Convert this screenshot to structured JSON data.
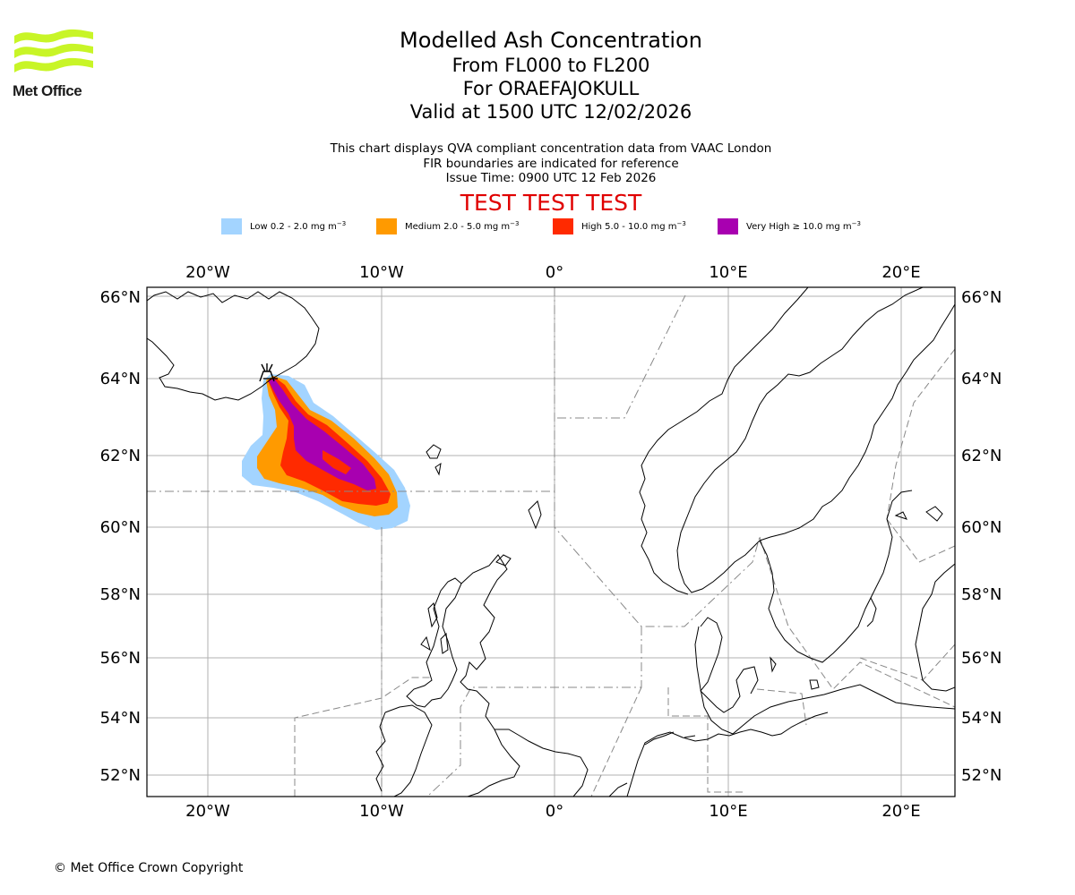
{
  "logo": {
    "text": "Met Office",
    "color": "#c8f527"
  },
  "title": {
    "line1": "Modelled Ash Concentration",
    "line2": "From FL000 to FL200",
    "line3": "For ORAEFAJOKULL",
    "line4": "Valid at 1500 UTC 12/02/2026"
  },
  "subtitle": {
    "line1": "This chart displays QVA compliant concentration data from VAAC London",
    "line2": "FIR boundaries are indicated for reference",
    "line3": "Issue Time: 0900 UTC 12 Feb 2026"
  },
  "banner": "TEST TEST TEST",
  "legend": [
    {
      "label": "Low 0.2 - 2.0 mg m",
      "unit_exp": "−3",
      "color": "#a3d4ff"
    },
    {
      "label": "Medium 2.0 - 5.0 mg m",
      "unit_exp": "−3",
      "color": "#ff9a00"
    },
    {
      "label": "High 5.0 - 10.0 mg m",
      "unit_exp": "−3",
      "color": "#ff2a00"
    },
    {
      "label": "Very High  ≥  10.0 mg m",
      "unit_exp": "−3",
      "color": "#a800b0"
    }
  ],
  "map": {
    "lon_labels": [
      "20°W",
      "10°W",
      "0°",
      "10°E",
      "20°E"
    ],
    "lat_labels": [
      "66°N",
      "64°N",
      "62°N",
      "60°N",
      "58°N",
      "56°N",
      "54°N",
      "52°N"
    ],
    "volcano": "ORAEFAJOKULL"
  },
  "copyright": "© Met Office Crown Copyright"
}
